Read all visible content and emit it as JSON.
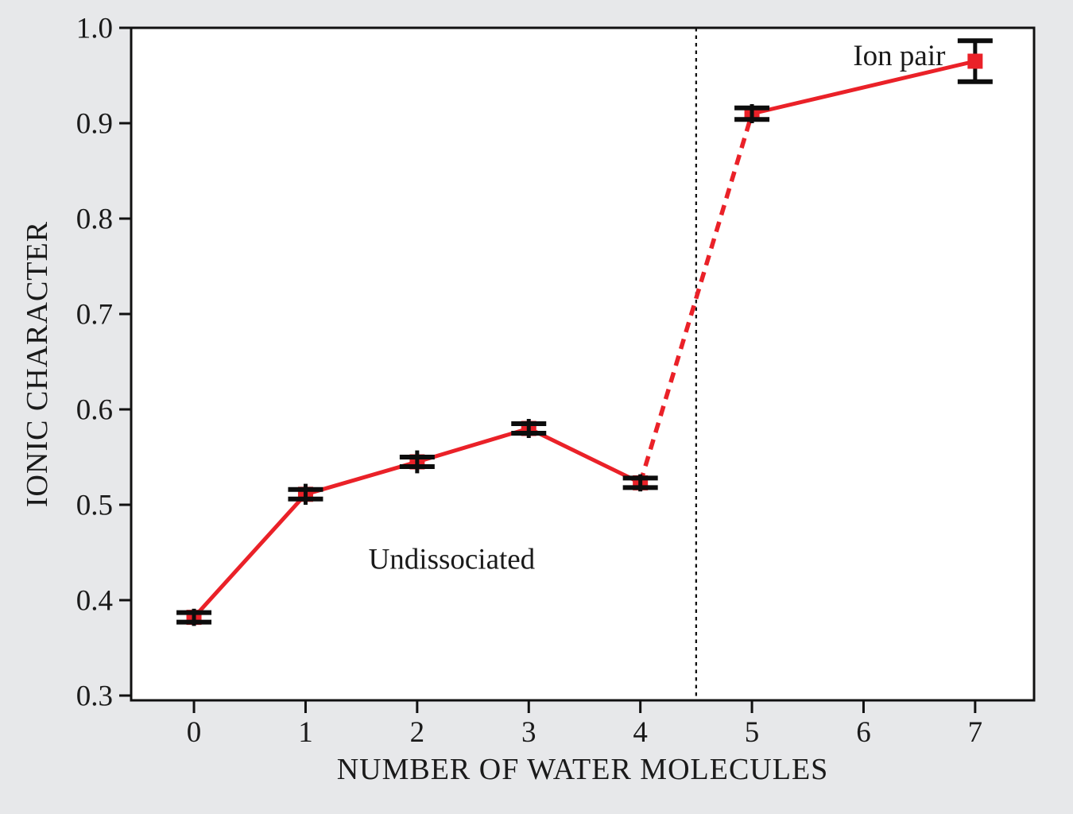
{
  "chart_data": {
    "type": "line",
    "title": "",
    "xlabel": "NUMBER OF WATER MOLECULES",
    "ylabel": "IONIC CHARACTER",
    "x": [
      0,
      1,
      2,
      3,
      4,
      5,
      7
    ],
    "y": [
      0.382,
      0.511,
      0.545,
      0.58,
      0.523,
      0.91,
      0.965
    ],
    "yerr_cap": [
      0.005,
      0.005,
      0.005,
      0.005,
      0.005,
      0.006,
      0.0215
    ],
    "yerr_line": [
      0.009,
      0.011,
      0.012,
      0.01,
      0.009,
      0.01,
      0.0215
    ],
    "xticks": [
      0,
      1,
      2,
      3,
      4,
      5,
      6,
      7
    ],
    "yticks": [
      0.3,
      0.4,
      0.5,
      0.6,
      0.7,
      0.8,
      0.9,
      1.0
    ],
    "ytick_decimals": 1,
    "xlim": [
      -0.563,
      7.528
    ],
    "ylim": [
      0.295,
      1.0
    ],
    "dashed_segment_between": [
      4,
      5
    ],
    "divider_x": 4.5,
    "annotations": [
      {
        "name": "annotation-undissociated",
        "text": "Undissociated",
        "x": 2.31,
        "y": 0.4435
      },
      {
        "name": "annotation-ion-pair",
        "text": "Ion pair",
        "x": 6.32,
        "y": 0.9715
      }
    ],
    "legend": null,
    "grid": false,
    "colors": {
      "line": "#ea2128",
      "marker": "#ea2128",
      "error_bar": "#0d0d0d",
      "divider": "#111111",
      "frame": "#111111",
      "text": "#1a1a1a",
      "plot_background": "#ffffff",
      "page_background": "#e7e8ea"
    }
  }
}
